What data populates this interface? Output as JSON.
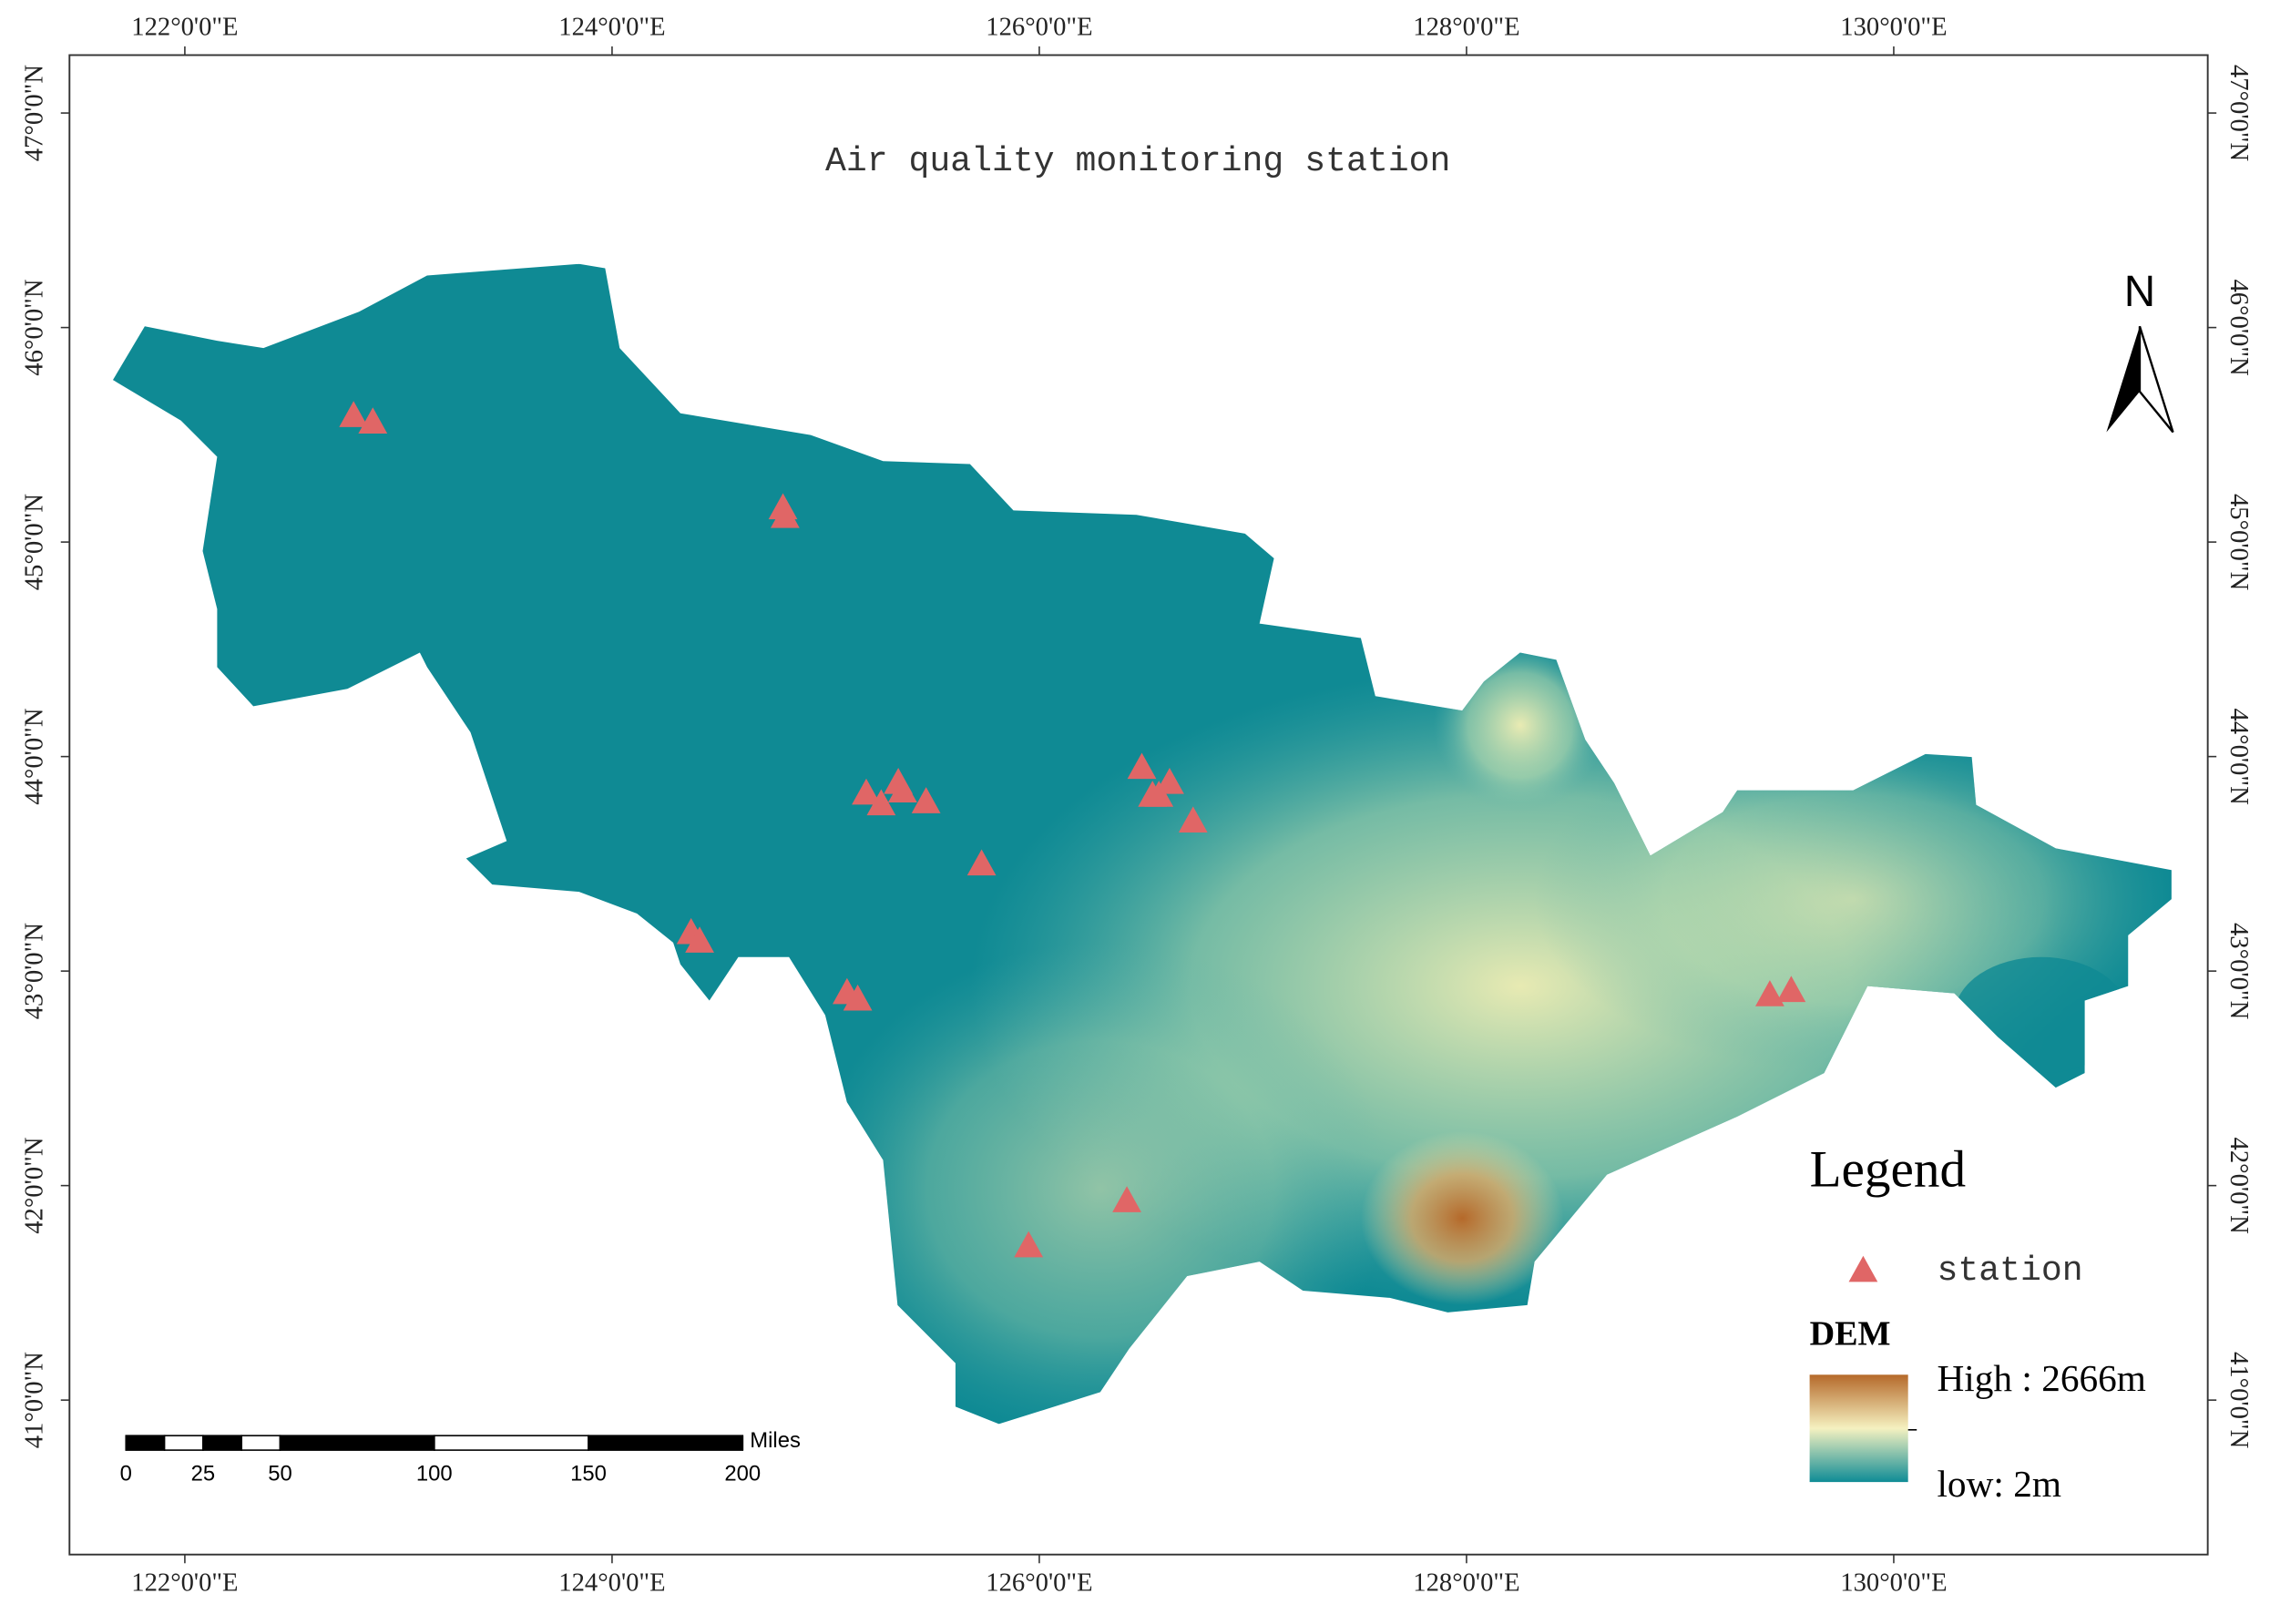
{
  "title": "Air quality monitoring station",
  "map": {
    "lon_range": [
      121.46,
      131.47
    ],
    "lat_range": [
      40.28,
      47.27
    ],
    "lon_ticks": [
      {
        "value": 122,
        "label": "122°0'0\"E"
      },
      {
        "value": 124,
        "label": "124°0'0\"E"
      },
      {
        "value": 126,
        "label": "126°0'0\"E"
      },
      {
        "value": 128,
        "label": "128°0'0\"E"
      },
      {
        "value": 130,
        "label": "130°0'0\"E"
      }
    ],
    "lat_ticks": [
      {
        "value": 41,
        "label": "41°0'0\"N"
      },
      {
        "value": 42,
        "label": "42°0'0\"N"
      },
      {
        "value": 43,
        "label": "43°0'0\"N"
      },
      {
        "value": 44,
        "label": "44°0'0\"N"
      },
      {
        "value": 45,
        "label": "45°0'0\"N"
      },
      {
        "value": 46,
        "label": "46°0'0\"N"
      },
      {
        "value": 47,
        "label": "47°0'0\"N"
      }
    ]
  },
  "north_arrow": "N",
  "stations": [
    [
      122.79,
      45.59
    ],
    [
      122.88,
      45.56
    ],
    [
      124.8,
      45.16
    ],
    [
      124.81,
      45.12
    ],
    [
      125.19,
      43.83
    ],
    [
      125.26,
      43.78
    ],
    [
      125.34,
      43.88
    ],
    [
      125.36,
      43.84
    ],
    [
      125.47,
      43.79
    ],
    [
      125.73,
      43.5
    ],
    [
      126.48,
      43.95
    ],
    [
      126.53,
      43.82
    ],
    [
      126.61,
      43.88
    ],
    [
      126.56,
      43.82
    ],
    [
      126.72,
      43.7
    ],
    [
      124.37,
      43.18
    ],
    [
      124.41,
      43.14
    ],
    [
      125.1,
      42.9
    ],
    [
      125.15,
      42.87
    ],
    [
      125.95,
      41.72
    ],
    [
      126.41,
      41.93
    ],
    [
      129.42,
      42.89
    ],
    [
      129.52,
      42.91
    ]
  ],
  "legend": {
    "title": "Legend",
    "station": "station",
    "dem_title": "DEM",
    "high": "High : 2666m",
    "low": "low: 2m"
  },
  "scale_bar": {
    "ticks": [
      0,
      25,
      50,
      100,
      150,
      200
    ],
    "unit": "Miles"
  }
}
